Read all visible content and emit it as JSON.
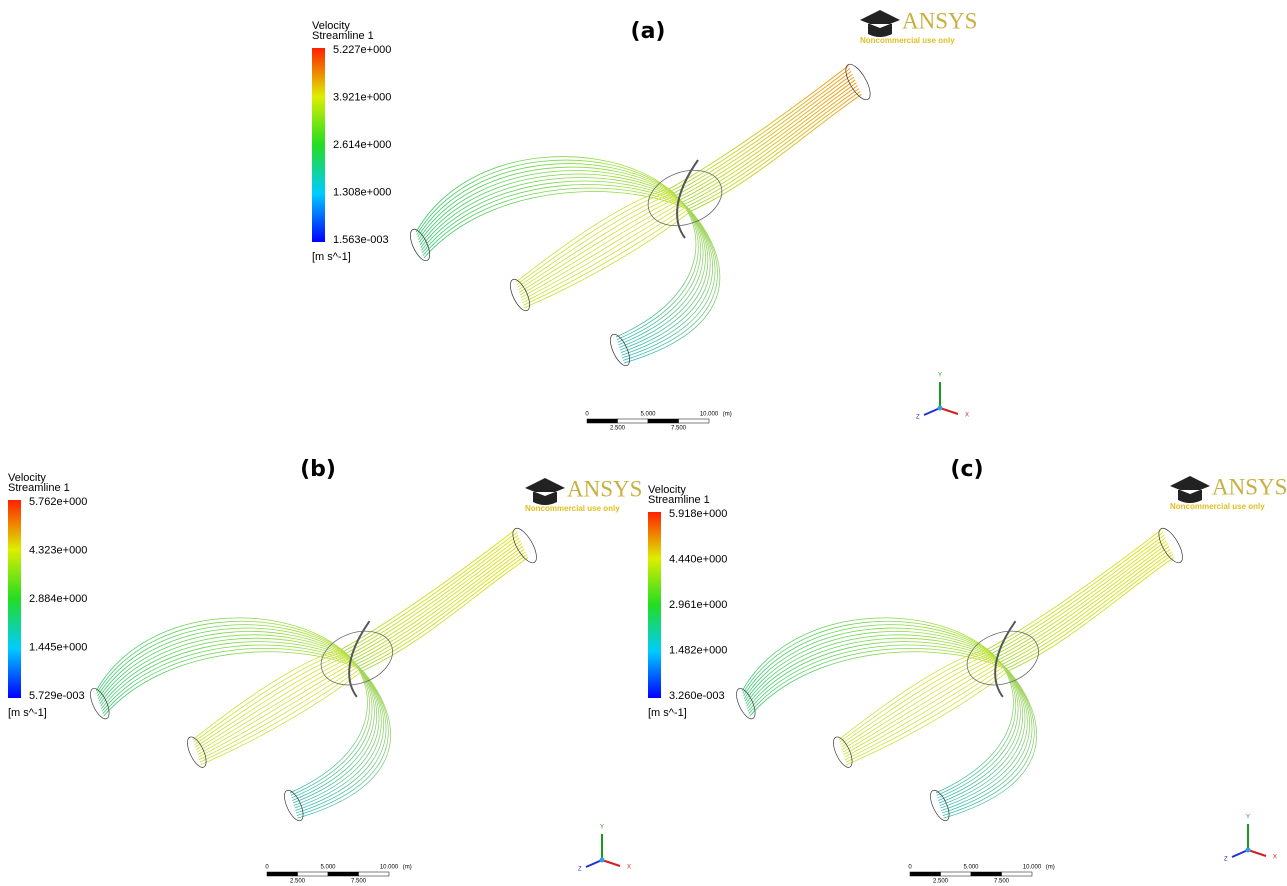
{
  "panels": [
    {
      "label": "(a)",
      "legend": {
        "title": "Velocity",
        "subtitle": "Streamline 1",
        "ticks": [
          "5.227e+000",
          "3.921e+000",
          "2.614e+000",
          "1.308e+000",
          "1.563e-003"
        ],
        "unit": "[m s^-1]"
      },
      "logo": {
        "brand": "ANSYS",
        "note": "Noncommercial use only"
      },
      "scale": {
        "top": [
          "0",
          "5.000",
          "10.000",
          "(m)"
        ],
        "bottom": [
          "2.500",
          "7.500"
        ]
      },
      "axes": {
        "y": "Y",
        "x": "X",
        "z": "Z"
      }
    },
    {
      "label": "(b)",
      "legend": {
        "title": "Velocity",
        "subtitle": "Streamline 1",
        "ticks": [
          "5.762e+000",
          "4.323e+000",
          "2.884e+000",
          "1.445e+000",
          "5.729e-003"
        ],
        "unit": "[m s^-1]"
      },
      "logo": {
        "brand": "ANSYS",
        "note": "Noncommercial use only"
      },
      "scale": {
        "top": [
          "0",
          "5.000",
          "10.000",
          "(m)"
        ],
        "bottom": [
          "2.500",
          "7.500"
        ]
      },
      "axes": {
        "y": "Y",
        "x": "X",
        "z": "Z"
      }
    },
    {
      "label": "(c)",
      "legend": {
        "title": "Velocity",
        "subtitle": "Streamline 1",
        "ticks": [
          "5.918e+000",
          "4.440e+000",
          "2.961e+000",
          "1.482e+000",
          "3.260e-003"
        ],
        "unit": "[m s^-1]"
      },
      "logo": {
        "brand": "ANSYS",
        "note": "Noncommercial use only"
      },
      "scale": {
        "top": [
          "0",
          "5.000",
          "10.000",
          "(m)"
        ],
        "bottom": [
          "2.500",
          "7.500"
        ]
      },
      "axes": {
        "y": "Y",
        "x": "X",
        "z": "Z"
      }
    }
  ]
}
